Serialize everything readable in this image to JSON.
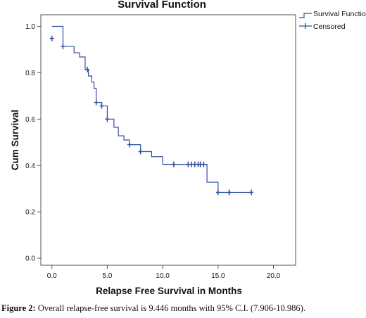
{
  "chart_data": {
    "type": "line",
    "title": "Survival Function",
    "xlabel": "Relapse Free Survival in Months",
    "ylabel": "Cum Survival",
    "xlim": [
      -1,
      22
    ],
    "ylim": [
      -0.03,
      1.05
    ],
    "x_ticks": [
      "0.0",
      "5.0",
      "10.0",
      "15.0",
      "20.0"
    ],
    "y_ticks": [
      "0.0",
      "0.2",
      "0.4",
      "0.6",
      "0.8",
      "1.0"
    ],
    "legend_position": "top-right, outside plot",
    "grid": false,
    "series": [
      {
        "name": "Survival Function",
        "kind": "step",
        "color": "#2f4fa0",
        "points": [
          [
            0,
            1.0
          ],
          [
            1.0,
            0.914
          ],
          [
            2.0,
            0.886
          ],
          [
            2.5,
            0.868
          ],
          [
            3.0,
            0.814
          ],
          [
            3.3,
            0.786
          ],
          [
            3.6,
            0.76
          ],
          [
            3.8,
            0.733
          ],
          [
            4.0,
            0.672
          ],
          [
            4.5,
            0.657
          ],
          [
            5.0,
            0.6
          ],
          [
            5.6,
            0.565
          ],
          [
            6.0,
            0.528
          ],
          [
            6.5,
            0.51
          ],
          [
            7.0,
            0.49
          ],
          [
            8.0,
            0.46
          ],
          [
            9.0,
            0.438
          ],
          [
            10.0,
            0.405
          ],
          [
            14.0,
            0.328
          ],
          [
            15.0,
            0.284
          ],
          [
            18.0,
            0.284
          ]
        ]
      },
      {
        "name": "Censored",
        "kind": "markers",
        "color": "#2f4fa0",
        "points": [
          [
            0,
            0.948
          ],
          [
            1.0,
            0.914
          ],
          [
            3.2,
            0.814
          ],
          [
            4.0,
            0.672
          ],
          [
            4.5,
            0.657
          ],
          [
            5.0,
            0.6
          ],
          [
            7.0,
            0.49
          ],
          [
            8.0,
            0.46
          ],
          [
            11.0,
            0.405
          ],
          [
            12.3,
            0.405
          ],
          [
            12.6,
            0.405
          ],
          [
            12.9,
            0.405
          ],
          [
            13.2,
            0.405
          ],
          [
            13.4,
            0.405
          ],
          [
            13.7,
            0.405
          ],
          [
            15.0,
            0.284
          ],
          [
            16.0,
            0.284
          ],
          [
            18.0,
            0.284
          ]
        ]
      }
    ]
  },
  "caption": {
    "label": "Figure 2:",
    "text": " Overall relapse-free survival is 9.446 months with 95% C.I. (7.906-10.986)."
  }
}
